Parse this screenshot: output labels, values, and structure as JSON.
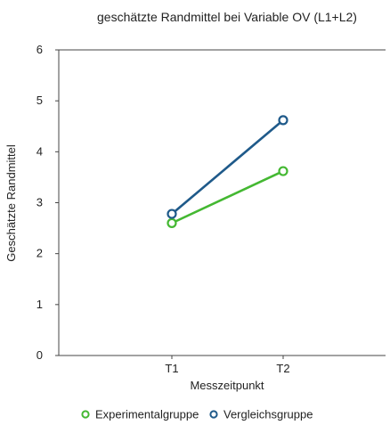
{
  "chart_data": {
    "type": "line",
    "title": "geschätzte Randmittel bei Variable OV (L1+L2)",
    "xlabel": "Messzeitpunkt",
    "ylabel": "Geschätzte Randmittel",
    "categories": [
      "T1",
      "T2"
    ],
    "ylim": [
      0,
      6
    ],
    "yticks": [
      0,
      1,
      2,
      3,
      4,
      5,
      6
    ],
    "grid": false,
    "legend_position": "bottom",
    "series": [
      {
        "name": "Experimentalgruppe",
        "values": [
          2.6,
          3.62
        ],
        "color": "#44b832"
      },
      {
        "name": "Vergleichsgruppe",
        "values": [
          2.78,
          4.62
        ],
        "color": "#1f5a8a"
      }
    ]
  }
}
